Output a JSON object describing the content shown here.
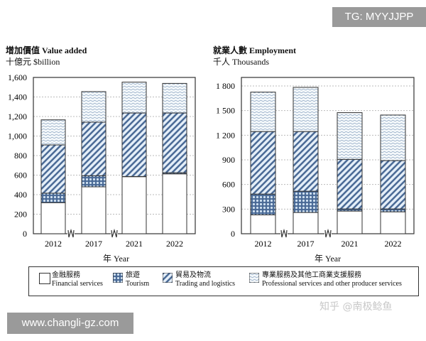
{
  "watermarks": {
    "tg": "TG: MYYJJPP",
    "site": "www.changli-gz.com",
    "zhihu": "知乎 @南极鲶鱼"
  },
  "colors": {
    "pattern": "#4a6a96",
    "fill": "#dfeaf5"
  },
  "legend": [
    {
      "zh": "金融服務",
      "en": "Financial services",
      "pattern": "none"
    },
    {
      "zh": "旅遊",
      "en": "Tourism",
      "pattern": "dots"
    },
    {
      "zh": "貿易及物流",
      "en": "Trading and logistics",
      "pattern": "diagonal"
    },
    {
      "zh": "專業服務及其他工商業支援服務",
      "en": "Professional services and other producer services",
      "pattern": "wavy"
    }
  ],
  "chart_data": [
    {
      "type": "bar",
      "stacked": true,
      "title": "增加價值 Value added",
      "ylabel": "十億元 $billion",
      "xlabel": "年 Year",
      "categories": [
        "2012",
        "2017",
        "2021",
        "2022"
      ],
      "ylim": [
        0,
        1600
      ],
      "yticks": [
        "0",
        "200",
        "400",
        "600",
        "800",
        "1,000",
        "1,200",
        "1,400",
        "1,600"
      ],
      "ytick_values": [
        0,
        200,
        400,
        600,
        800,
        1000,
        1200,
        1400,
        1600
      ],
      "grid": true,
      "axis_breaks": true,
      "series": [
        {
          "name": "Financial services",
          "values": [
            318,
            480,
            584,
            613
          ]
        },
        {
          "name": "Tourism",
          "values": [
            97,
            114,
            2,
            12
          ]
        },
        {
          "name": "Trading and logistics",
          "values": [
            494,
            548,
            650,
            611
          ]
        },
        {
          "name": "Professional services and other producer services",
          "values": [
            257,
            313,
            316,
            303
          ]
        }
      ]
    },
    {
      "type": "bar",
      "stacked": true,
      "title": "就業人數 Employment",
      "ylabel": "千人 Thousands",
      "xlabel": "年 Year",
      "categories": [
        "2012",
        "2017",
        "2021",
        "2022"
      ],
      "ylim": [
        0,
        1800
      ],
      "yticks": [
        "0",
        "300",
        "600",
        "900",
        "1 200",
        "1 500",
        "1 800"
      ],
      "ytick_values": [
        0,
        300,
        600,
        900,
        1200,
        1500,
        1800
      ],
      "grid": true,
      "axis_breaks": true,
      "series": [
        {
          "name": "Financial services",
          "values": [
            230,
            259,
            276,
            267
          ]
        },
        {
          "name": "Tourism",
          "values": [
            253,
            259,
            26,
            35
          ]
        },
        {
          "name": "Trading and logistics",
          "values": [
            762,
            727,
            604,
            589
          ]
        },
        {
          "name": "Professional services and other producer services",
          "values": [
            480,
            538,
            569,
            555
          ]
        }
      ]
    }
  ]
}
